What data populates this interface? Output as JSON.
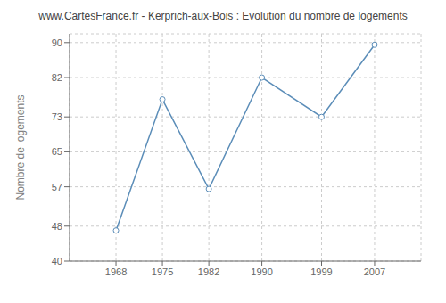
{
  "chart_data": {
    "type": "line",
    "title": "www.CartesFrance.fr - Kerprich-aux-Bois : Evolution du nombre de logements",
    "ylabel": "Nombre de logements",
    "x": [
      1968,
      1975,
      1982,
      1990,
      1999,
      2007
    ],
    "values": [
      47,
      77,
      56.5,
      82,
      73,
      89.5
    ],
    "color": "#5b8db8",
    "marker": "circle",
    "xlim": [
      1961,
      2014
    ],
    "ylim": [
      40,
      92
    ],
    "xticks": [
      1968,
      1975,
      1982,
      1990,
      1999,
      2007
    ],
    "yticks": [
      40,
      48,
      57,
      65,
      73,
      82,
      90
    ],
    "grid": true
  }
}
